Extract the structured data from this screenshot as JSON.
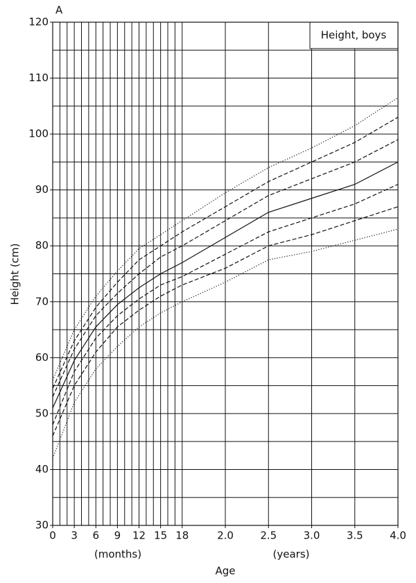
{
  "chart_data": {
    "type": "line",
    "panel_label": "A",
    "inset_label": "Height, boys",
    "ylabel": "Height (cm)",
    "xlabel": "Age",
    "x_unit_labels": [
      "(months)",
      "(years)"
    ],
    "xlim": [
      0,
      48
    ],
    "ylim": [
      30,
      120
    ],
    "xticks": [
      0,
      3,
      6,
      9,
      12,
      15,
      18,
      {
        "value": 24,
        "label": "2.0"
      },
      {
        "value": 30,
        "label": "2.5"
      },
      {
        "value": 36,
        "label": "3.0"
      },
      {
        "value": 42,
        "label": "3.5"
      },
      {
        "value": 48,
        "label": "4.0"
      }
    ],
    "yticks": [
      30,
      40,
      50,
      60,
      70,
      80,
      90,
      100,
      110,
      120
    ],
    "xgrid": [
      0,
      1,
      2,
      3,
      4,
      5,
      6,
      7,
      8,
      9,
      10,
      11,
      12,
      13,
      14,
      15,
      16,
      17,
      18,
      24,
      30,
      36,
      42,
      48
    ],
    "ygrid": [
      30,
      35,
      40,
      45,
      50,
      55,
      60,
      65,
      70,
      75,
      80,
      85,
      90,
      95,
      100,
      105,
      110,
      115,
      120
    ],
    "x": [
      0,
      3,
      6,
      9,
      12,
      15,
      18,
      24,
      30,
      36,
      42,
      48
    ],
    "series": [
      {
        "style": "dotted",
        "color": "#111111",
        "values": [
          56,
          65,
          71,
          75.5,
          79.5,
          82,
          84.5,
          89.5,
          94,
          97.5,
          101.5,
          106.5
        ]
      },
      {
        "style": "dashed",
        "color": "#111111",
        "values": [
          54.5,
          63,
          69,
          73.5,
          77.5,
          80,
          82.5,
          87,
          91.5,
          95,
          98.5,
          103
        ]
      },
      {
        "style": "dashed",
        "color": "#111111",
        "values": [
          53,
          61.5,
          67.5,
          71.5,
          75,
          78,
          80,
          84.5,
          89,
          92,
          95,
          99
        ]
      },
      {
        "style": "solid",
        "color": "#111111",
        "values": [
          51,
          59.5,
          65.5,
          69.5,
          72.5,
          75,
          77,
          81.5,
          86,
          88.5,
          91,
          95
        ]
      },
      {
        "style": "dashed",
        "color": "#111111",
        "values": [
          48,
          57.5,
          63.5,
          67.5,
          70.5,
          73,
          74.5,
          78.5,
          82.5,
          85,
          87.5,
          91
        ]
      },
      {
        "style": "dashed",
        "color": "#111111",
        "values": [
          46,
          55,
          61,
          65.5,
          68.5,
          71,
          73,
          76,
          80,
          82,
          84.5,
          87
        ]
      },
      {
        "style": "dotted",
        "color": "#111111",
        "values": [
          42,
          52,
          58,
          62,
          65.5,
          68,
          70,
          73.5,
          77.5,
          79,
          81,
          83
        ]
      }
    ]
  }
}
